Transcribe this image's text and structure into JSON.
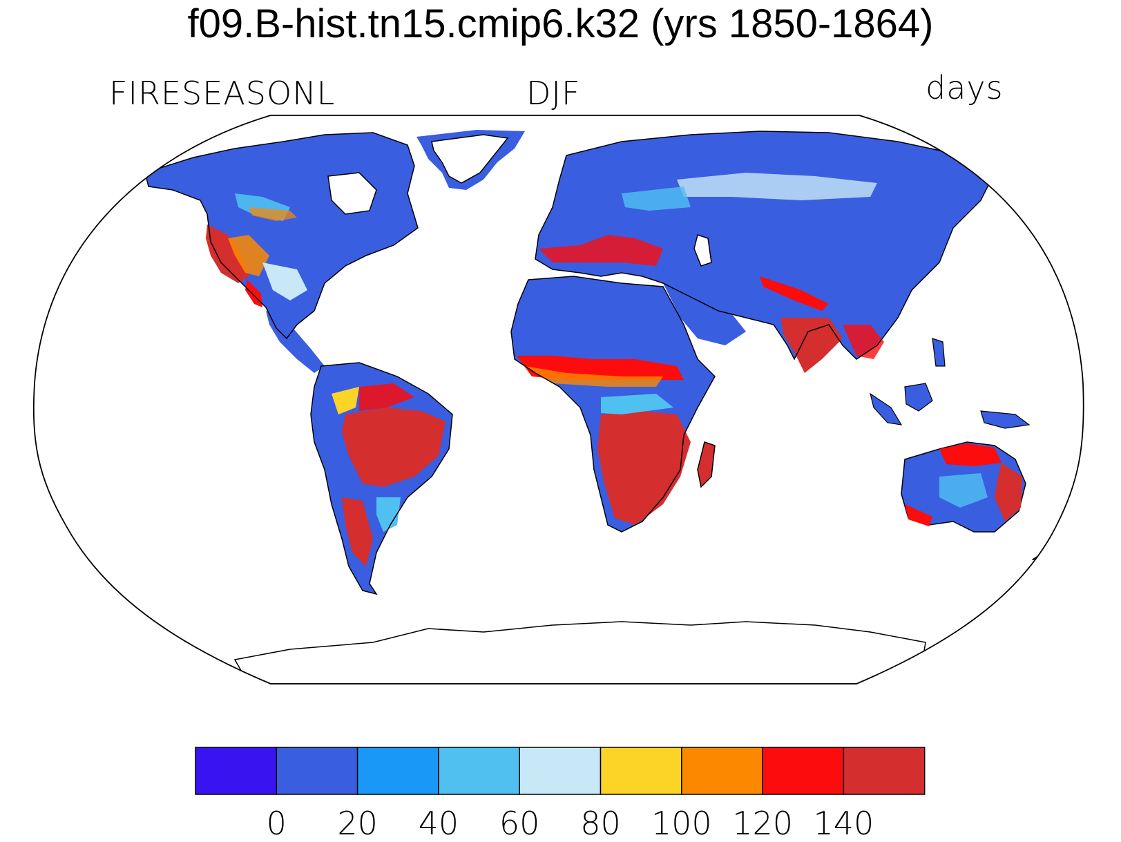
{
  "title": "f09.B-hist.tn15.cmip6.k32 (yrs 1850-1864)",
  "variable": "FIRESEASONL",
  "season": "DJF",
  "units": "days",
  "projection": "Robinson (global)",
  "colorbar": {
    "colors": [
      "#3a14f0",
      "#3a5ee0",
      "#1a98f8",
      "#50c0f0",
      "#c8e8f8",
      "#fcd428",
      "#fc8800",
      "#fc0c0c",
      "#d42e2e"
    ],
    "tick_labels": [
      "0",
      "20",
      "40",
      "60",
      "80",
      "100",
      "120",
      "140"
    ]
  },
  "legend": {
    "low_color": "#3a5ee0",
    "mid_color": "#c8e8f8",
    "high_color": "#d42e2e"
  }
}
